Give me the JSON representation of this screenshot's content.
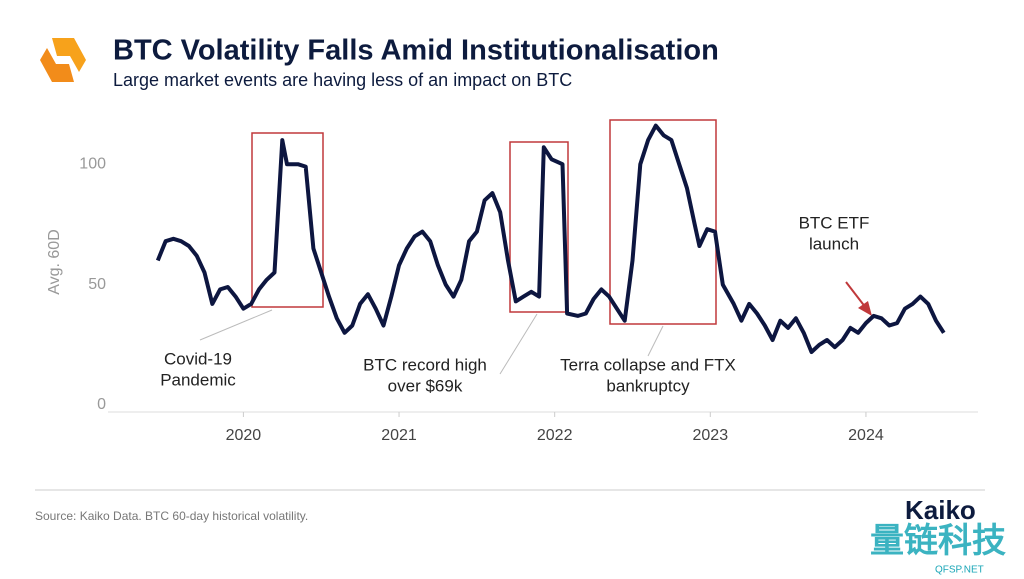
{
  "chart_data": {
    "type": "line",
    "title": "BTC Volatility Falls Amid Institutionalisation",
    "subtitle": "Large market events are having less of an impact on BTC",
    "y_label": "Avg. 60D",
    "source": "Source: Kaiko Data. BTC 60-day historical volatility.",
    "logo": "Kaiko",
    "watermark": [
      "量链科技",
      "QFSP.NET"
    ],
    "annotations": [
      {
        "text": [
          "Covid-19",
          "Pandemic"
        ]
      },
      {
        "text": [
          "BTC record high",
          "over $69k"
        ]
      },
      {
        "text": [
          "Terra collapse and FTX",
          "bankruptcy"
        ]
      },
      {
        "text": [
          "BTC ETF",
          "launch"
        ]
      }
    ],
    "xlim": [
      2019.13,
      2024.72
    ],
    "xticks": [
      2020,
      2021,
      2022,
      2023,
      2024
    ],
    "ylim": [
      0,
      120
    ],
    "yticks": [
      0,
      50,
      100
    ],
    "grid": false,
    "series": [
      {
        "color": "#0d1640",
        "x": [
          2019.45,
          2019.5,
          2019.55,
          2019.6,
          2019.65,
          2019.7,
          2019.75,
          2019.8,
          2019.85,
          2019.9,
          2019.95,
          2020.0,
          2020.05,
          2020.1,
          2020.15,
          2020.2,
          2020.25,
          2020.28,
          2020.35,
          2020.4,
          2020.45,
          2020.5,
          2020.55,
          2020.6,
          2020.65,
          2020.7,
          2020.75,
          2020.8,
          2020.85,
          2020.9,
          2020.95,
          2021.0,
          2021.05,
          2021.1,
          2021.15,
          2021.2,
          2021.25,
          2021.3,
          2021.35,
          2021.4,
          2021.45,
          2021.5,
          2021.55,
          2021.6,
          2021.65,
          2021.7,
          2021.75,
          2021.8,
          2021.85,
          2021.9,
          2021.93,
          2021.98,
          2022.05,
          2022.08,
          2022.15,
          2022.2,
          2022.25,
          2022.3,
          2022.35,
          2022.4,
          2022.45,
          2022.5,
          2022.55,
          2022.6,
          2022.65,
          2022.7,
          2022.75,
          2022.8,
          2022.85,
          2022.9,
          2022.93,
          2022.98,
          2023.03,
          2023.08,
          2023.15,
          2023.2,
          2023.25,
          2023.3,
          2023.35,
          2023.4,
          2023.45,
          2023.5,
          2023.55,
          2023.6,
          2023.65,
          2023.7,
          2023.75,
          2023.8,
          2023.85,
          2023.9,
          2023.95,
          2024.0,
          2024.05,
          2024.1,
          2024.15,
          2024.2,
          2024.25,
          2024.3,
          2024.35,
          2024.4,
          2024.45,
          2024.5
        ],
        "values": [
          60,
          68,
          69,
          68,
          66,
          62,
          55,
          42,
          48,
          49,
          45,
          40,
          42,
          48,
          52,
          55,
          110,
          100,
          100,
          99,
          65,
          55,
          45,
          36,
          30,
          33,
          42,
          46,
          40,
          33,
          45,
          58,
          65,
          70,
          72,
          68,
          58,
          50,
          45,
          52,
          68,
          72,
          85,
          88,
          80,
          60,
          43,
          45,
          47,
          45,
          107,
          102,
          100,
          38,
          37,
          38,
          44,
          48,
          45,
          40,
          35,
          60,
          100,
          110,
          116,
          112,
          110,
          100,
          90,
          75,
          66,
          73,
          72,
          50,
          42,
          35,
          42,
          38,
          33,
          27,
          35,
          32,
          36,
          30,
          22,
          25,
          27,
          24,
          27,
          32,
          30,
          34,
          37,
          36,
          33,
          34,
          40,
          42,
          45,
          42,
          35,
          30
        ]
      }
    ]
  }
}
